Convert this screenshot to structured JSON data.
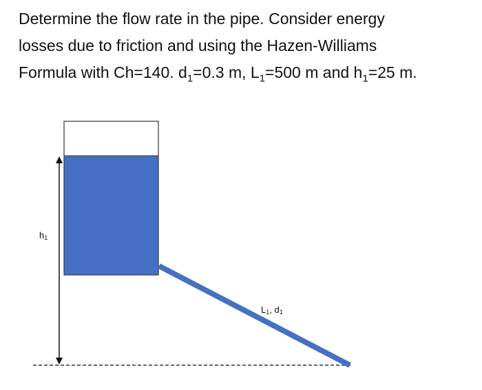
{
  "problem": {
    "line1": "Determine the flow rate in the pipe. Consider energy",
    "line2": "losses due to friction and using the Hazen-Williams",
    "line3_a": "Formula with Ch=140. d",
    "sub_1": "1",
    "line3_b": "=0.3 m, L",
    "line3_c": "=500 m and h",
    "line3_d": "=25 m."
  },
  "diagram": {
    "head_label": "h",
    "head_sub": "1",
    "pipe_label_a": "L",
    "pipe_label_b": ", d",
    "pipe_label_sub": "1",
    "colors": {
      "water": "#4570c4",
      "pipe": "#4570c4",
      "outline": "#333333",
      "arrow": "#111111",
      "datum": "#333333"
    }
  }
}
